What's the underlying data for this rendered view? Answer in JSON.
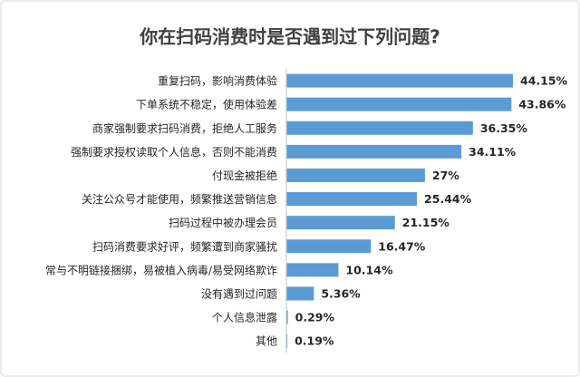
{
  "chart_data": {
    "type": "bar",
    "orientation": "horizontal",
    "title": "你在扫码消费时是否遇到过下列问题?",
    "categories": [
      "重复扫码，影响消费体验",
      "下单系统不稳定，使用体验差",
      "商家强制要求扫码消费，拒绝人工服务",
      "强制要求授权读取个人信息，否则不能消费",
      "付现金被拒绝",
      "关注公众号才能使用，频繁推送营销信息",
      "扫码过程中被办理会员",
      "扫码消费要求好评，频繁遭到商家骚扰",
      "常与不明链接捆绑，易被植入病毒/易受网络欺诈",
      "没有遇到过问题",
      "个人信息泄露",
      "其他"
    ],
    "values": [
      44.15,
      43.86,
      36.35,
      34.11,
      27,
      25.44,
      21.15,
      16.47,
      10.14,
      5.36,
      0.29,
      0.19
    ],
    "value_labels": [
      "44.15%",
      "43.86%",
      "36.35%",
      "34.11%",
      "27%",
      "25.44%",
      "21.15%",
      "16.47%",
      "10.14%",
      "5.36%",
      "0.29%",
      "0.19%"
    ],
    "color": "#5b9bd5"
  }
}
